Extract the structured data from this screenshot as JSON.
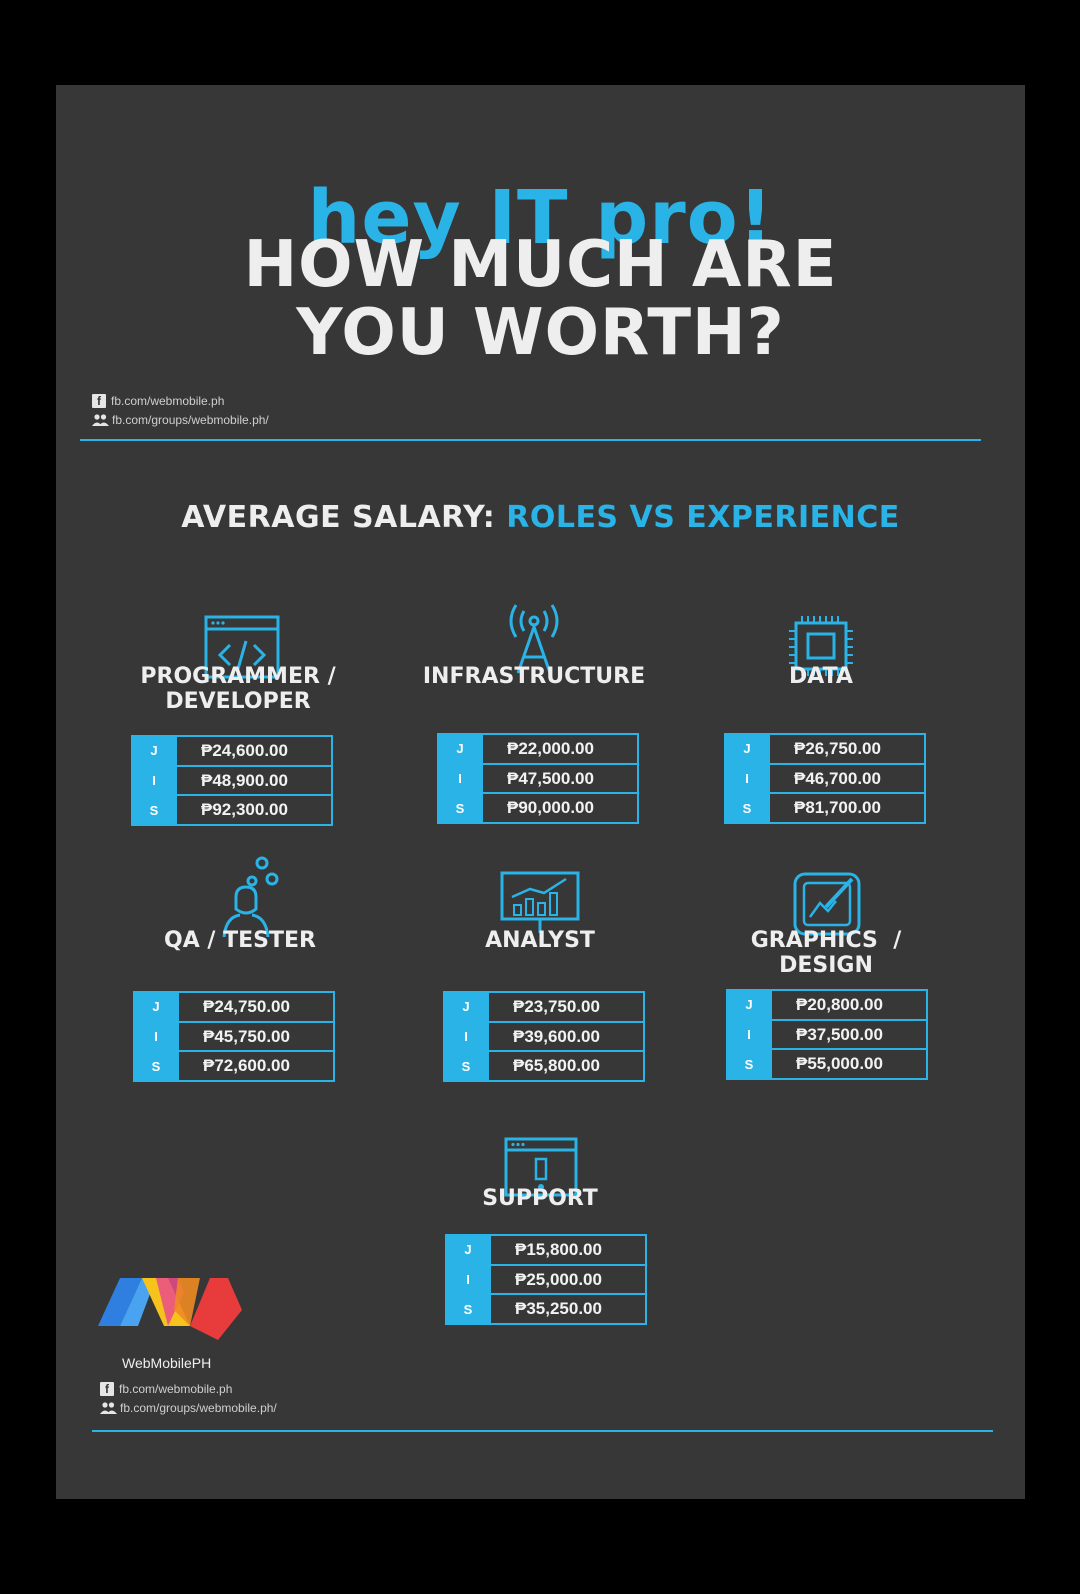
{
  "hero": {
    "line1": "hey IT pro!",
    "line2": "HOW MUCH ARE",
    "line3": "YOU WORTH?"
  },
  "social": {
    "facebook": "fb.com/webmobile.ph",
    "group": "fb.com/groups/webmobile.ph/"
  },
  "section": {
    "title_white": "AVERAGE SALARY:",
    "title_blue": "ROLES VS EXPERIENCE"
  },
  "levels": [
    "J",
    "I",
    "S"
  ],
  "roles": [
    {
      "icon": "code-window-icon",
      "name_line1": "PROGRAMMER /",
      "name_line2": "DEVELOPER",
      "salaries": [
        "₱24,600.00",
        "₱48,900.00",
        "₱92,300.00"
      ]
    },
    {
      "icon": "antenna-icon",
      "name_line1": "INFRASTRUCTURE",
      "name_line2": "",
      "salaries": [
        "₱22,000.00",
        "₱47,500.00",
        "₱90,000.00"
      ]
    },
    {
      "icon": "chip-icon",
      "name_line1": "DATA",
      "name_line2": "",
      "salaries": [
        "₱26,750.00",
        "₱46,700.00",
        "₱81,700.00"
      ]
    },
    {
      "icon": "tester-gears-icon",
      "name_line1": "QA / TESTER",
      "name_line2": "",
      "salaries": [
        "₱24,750.00",
        "₱45,750.00",
        "₱72,600.00"
      ]
    },
    {
      "icon": "analytics-board-icon",
      "name_line1": "ANALYST",
      "name_line2": "",
      "salaries": [
        "₱23,750.00",
        "₱39,600.00",
        "₱65,800.00"
      ]
    },
    {
      "icon": "design-pen-icon",
      "name_line1": "GRAPHICS  /",
      "name_line2": "DESIGN",
      "salaries": [
        "₱20,800.00",
        "₱37,500.00",
        "₱55,000.00"
      ]
    },
    {
      "icon": "alert-window-icon",
      "name_line1": "SUPPORT",
      "name_line2": "",
      "salaries": [
        "₱15,800.00",
        "₱25,000.00",
        "₱35,250.00"
      ]
    }
  ],
  "brand": {
    "name": "WebMobilePH",
    "colors": {
      "blue": "#2f7fe0",
      "yellow": "#f6c21c",
      "red": "#e83b3b",
      "accent": "#2ab3e6"
    }
  }
}
